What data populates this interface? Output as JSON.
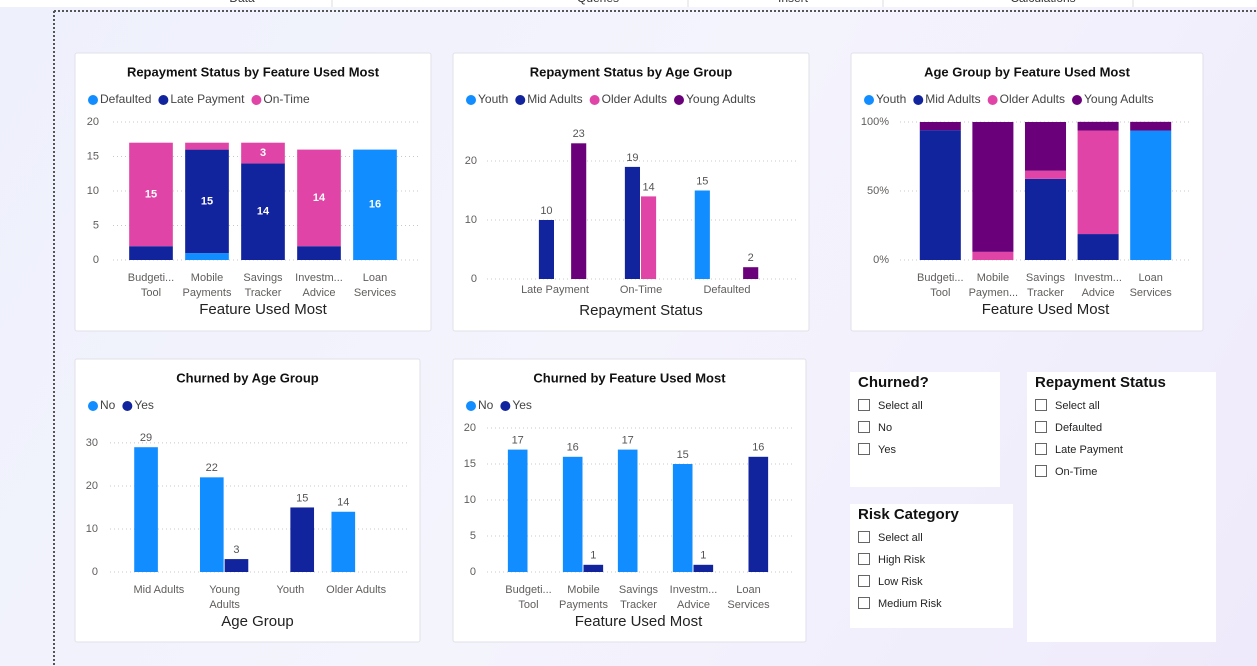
{
  "ribbon": [
    "Data",
    "Queries",
    "Insert",
    "Calculations"
  ],
  "chart_data": [
    {
      "type": "stacked_bar",
      "title": "Repayment Status by Feature Used Most",
      "x_label": "Feature Used Most",
      "categories": [
        "Budgeti... Tool",
        "Mobile Payments",
        "Savings Tracker",
        "Investm... Advice",
        "Loan Services"
      ],
      "series": [
        {
          "name": "Defaulted",
          "color": "#118DFF",
          "values": [
            0,
            1,
            0,
            0,
            16
          ]
        },
        {
          "name": "Late Payment",
          "color": "#12239E",
          "values": [
            2,
            15,
            14,
            2,
            0
          ]
        },
        {
          "name": "On-Time",
          "color": "#E044A7",
          "values": [
            15,
            1,
            3,
            14,
            0
          ]
        }
      ],
      "ylim": [
        0,
        20
      ],
      "yticks": [
        0,
        5,
        10,
        15,
        20
      ],
      "grid": true,
      "data_labels": "inside"
    },
    {
      "type": "bar",
      "title": "Repayment Status by Age Group",
      "x_label": "Repayment Status",
      "categories": [
        "Late Payment",
        "On-Time",
        "Defaulted"
      ],
      "series": [
        {
          "name": "Youth",
          "color": "#118DFF",
          "values": [
            null,
            null,
            15
          ]
        },
        {
          "name": "Mid Adults",
          "color": "#12239E",
          "values": [
            10,
            19,
            null
          ]
        },
        {
          "name": "Older Adults",
          "color": "#E044A7",
          "values": [
            null,
            14,
            null
          ]
        },
        {
          "name": "Young Adults",
          "color": "#6B007B",
          "values": [
            23,
            null,
            2
          ]
        }
      ],
      "ylim": [
        0,
        25
      ],
      "yticks": [
        0,
        10,
        20
      ],
      "grid": true,
      "data_labels": "outside"
    },
    {
      "type": "stacked_bar",
      "title": "Age Group by Feature Used Most",
      "x_label": "Feature Used Most",
      "categories": [
        "Budgeti... Tool",
        "Mobile Paymen...",
        "Savings Tracker",
        "Investm... Advice",
        "Loan Services"
      ],
      "series": [
        {
          "name": "Youth",
          "color": "#118DFF",
          "values": [
            0,
            0,
            0,
            0,
            93.8
          ]
        },
        {
          "name": "Mid Adults",
          "color": "#12239E",
          "values": [
            94.1,
            0,
            58.8,
            18.8,
            0
          ]
        },
        {
          "name": "Older Adults",
          "color": "#E044A7",
          "values": [
            0,
            5.9,
            5.9,
            75,
            0
          ]
        },
        {
          "name": "Young Adults",
          "color": "#6B007B",
          "values": [
            5.9,
            94.1,
            35.3,
            6.3,
            6.3
          ]
        }
      ],
      "ylim": [
        0,
        100
      ],
      "yticks": [
        {
          "value": 0,
          "label": "0%"
        },
        {
          "value": 50,
          "label": "50%"
        },
        {
          "value": 100,
          "label": "100%"
        }
      ],
      "grid": true
    },
    {
      "type": "bar",
      "title": "Churned by Age Group",
      "x_label": "Age Group",
      "categories": [
        "Mid Adults",
        "Young Adults",
        "Youth",
        "Older Adults"
      ],
      "series": [
        {
          "name": "No",
          "color": "#118DFF",
          "values": [
            29,
            22,
            null,
            14
          ]
        },
        {
          "name": "Yes",
          "color": "#12239E",
          "values": [
            null,
            3,
            15,
            null
          ]
        }
      ],
      "ylim": [
        0,
        33
      ],
      "yticks": [
        0,
        10,
        20,
        30
      ],
      "grid": true,
      "data_labels": "outside"
    },
    {
      "type": "bar",
      "title": "Churned by Feature Used Most",
      "x_label": "Feature Used Most",
      "categories": [
        "Budgeti... Tool",
        "Mobile Payments",
        "Savings Tracker",
        "Investm... Advice",
        "Loan Services"
      ],
      "series": [
        {
          "name": "No",
          "color": "#118DFF",
          "values": [
            17,
            16,
            17,
            15,
            null
          ]
        },
        {
          "name": "Yes",
          "color": "#12239E",
          "values": [
            null,
            1,
            null,
            1,
            16
          ]
        }
      ],
      "ylim": [
        0,
        21
      ],
      "yticks": [
        0,
        5,
        10,
        15,
        20
      ],
      "grid": true,
      "data_labels": "outside"
    }
  ],
  "slicers": [
    {
      "title": "Churned?",
      "items": [
        "Select all",
        "No",
        "Yes"
      ]
    },
    {
      "title": "Risk Category",
      "items": [
        "Select all",
        "High Risk",
        "Low Risk",
        "Medium Risk"
      ]
    },
    {
      "title": "Repayment Status",
      "items": [
        "Select all",
        "Defaulted",
        "Late Payment",
        "On-Time"
      ]
    }
  ]
}
